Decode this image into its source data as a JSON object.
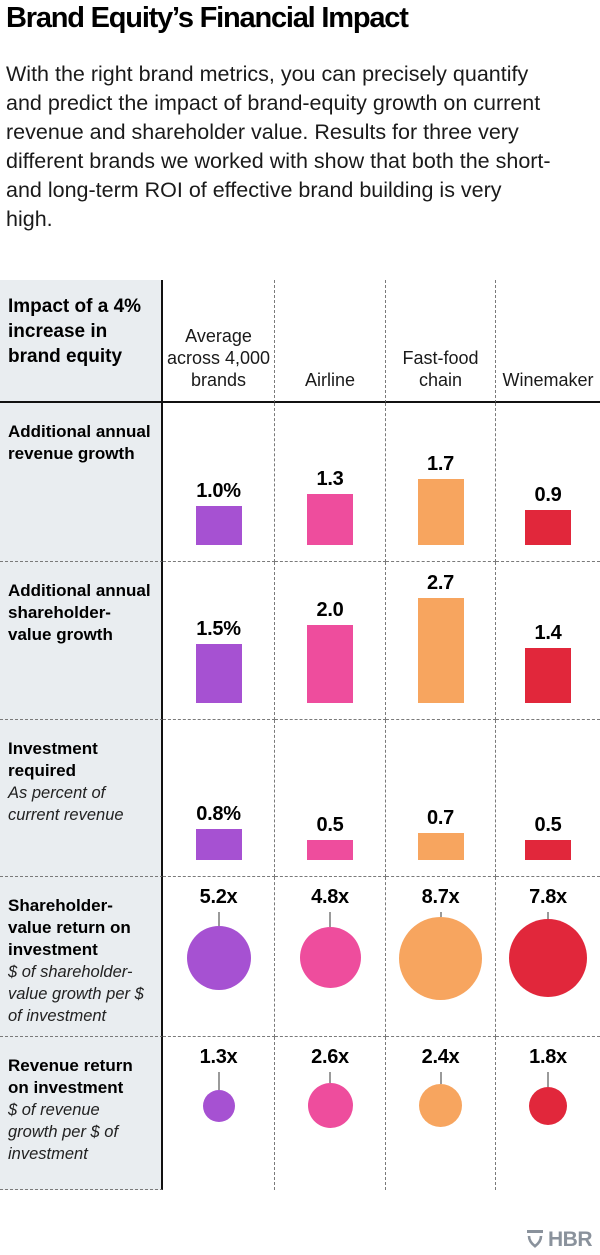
{
  "title": "Brand Equity’s Financial Impact",
  "intro": "With the right brand metrics, you can precisely quantify and predict the impact of brand-equity growth on current revenue and shareholder value. Results for three very different brands we worked with show that both the short- and long-term ROI of effective brand building is very high.",
  "corner_label": "Impact of a 4% increase in brand equity",
  "footer": {
    "logo_text": "HBR",
    "logo_color": "#8a929c",
    "logo_icon": "hbr-shield-icon"
  },
  "chart_data": {
    "type": "table",
    "title": "Brand Equity’s Financial Impact",
    "corner_label": "Impact of a 4% increase in brand equity",
    "categories": [
      "Average across 4,000 brands",
      "Airline",
      "Fast-food chain",
      "Winemaker"
    ],
    "colors": [
      "#a651d2",
      "#ee4d9d",
      "#f7a55f",
      "#e1273b"
    ],
    "legend_position": "none",
    "grid": "dashed-separators",
    "metrics": [
      {
        "label": "Additional annual revenue growth",
        "note": "",
        "glyph": "bar",
        "values": [
          1.0,
          1.3,
          1.7,
          0.9
        ],
        "display": [
          "1.0%",
          "1.3",
          "1.7",
          "0.9"
        ]
      },
      {
        "label": "Additional annual shareholder-value growth",
        "note": "",
        "glyph": "bar",
        "values": [
          1.5,
          2.0,
          2.7,
          1.4
        ],
        "display": [
          "1.5%",
          "2.0",
          "2.7",
          "1.4"
        ]
      },
      {
        "label": "Investment required",
        "note": "As percent of current revenue",
        "glyph": "bar",
        "values": [
          0.8,
          0.5,
          0.7,
          0.5
        ],
        "display": [
          "0.8%",
          "0.5",
          "0.7",
          "0.5"
        ]
      },
      {
        "label": "Shareholder-value return on investment",
        "note": "$ of shareholder-value growth per $ of investment",
        "glyph": "circle",
        "values": [
          5.2,
          4.8,
          8.7,
          7.8
        ],
        "display": [
          "5.2x",
          "4.8x",
          "8.7x",
          "7.8x"
        ]
      },
      {
        "label": "Revenue return on investment",
        "note": "$ of revenue growth per $ of investment",
        "glyph": "circle",
        "values": [
          1.3,
          2.6,
          2.4,
          1.8
        ],
        "display": [
          "1.3x",
          "2.6x",
          "2.4x",
          "1.8x"
        ]
      }
    ]
  }
}
